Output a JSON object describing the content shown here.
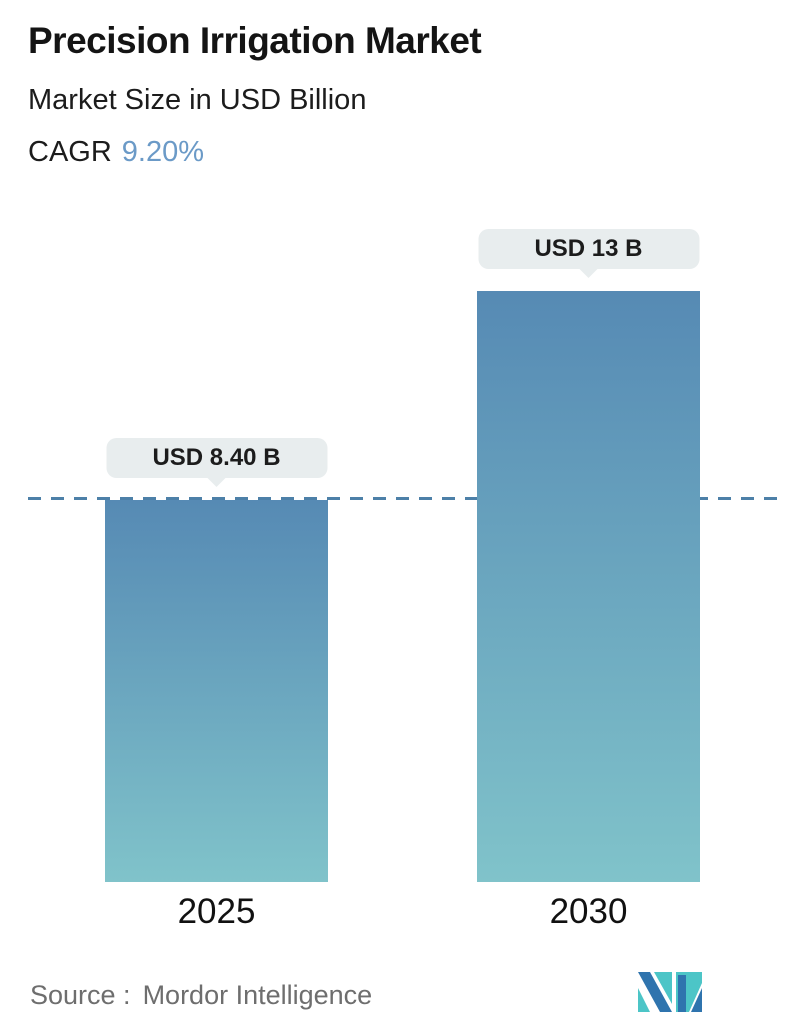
{
  "header": {
    "title": "Precision Irrigation Market",
    "subtitle": "Market Size in USD Billion",
    "cagr_label": "CAGR",
    "cagr_value": "9.20%"
  },
  "chart_data": {
    "type": "bar",
    "title": "Precision Irrigation Market",
    "subtitle": "Market Size in USD Billion",
    "unit": "USD Billion",
    "cagr_percent": 9.2,
    "categories": [
      "2025",
      "2030"
    ],
    "values": [
      8.4,
      13
    ],
    "value_labels": [
      "USD 8.40 B",
      "USD 13 B"
    ],
    "baseline": {
      "value": 8.4,
      "style": "dashed"
    },
    "ylim": [
      0,
      13.5
    ],
    "grid": false,
    "legend": "none",
    "colors": {
      "bar_top": "#568ab4",
      "bar_bottom": "#80c3ca",
      "dashed_line": "#4d80a8",
      "label_bg": "#e8edee",
      "cagr_accent": "#6b9ac7",
      "logo_blue": "#2f74ae",
      "logo_teal": "#4cc5c7"
    }
  },
  "footer": {
    "source_label": "Source :",
    "source_value": "Mordor Intelligence",
    "logo_name": "mordor-intelligence-logo"
  }
}
